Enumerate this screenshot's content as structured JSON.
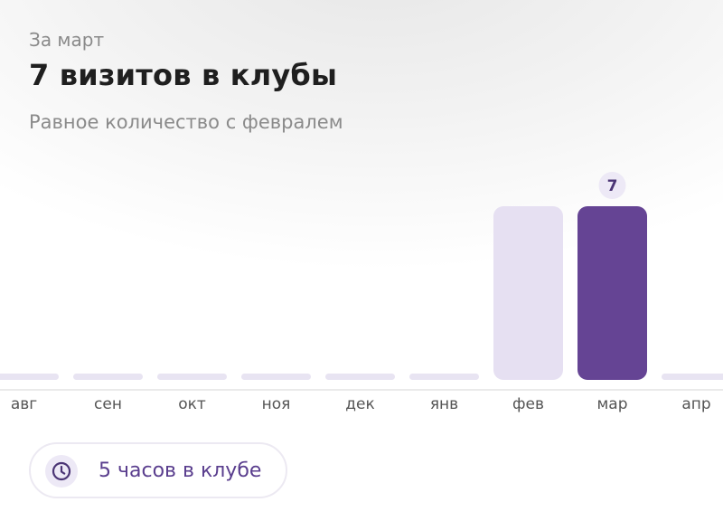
{
  "header": {
    "period_label": "За март",
    "title": "7 визитов в клубы",
    "comparison": "Равное количество с февралем"
  },
  "colors": {
    "highlight_bar": "#654494",
    "previous_bar": "#e6e0f2",
    "empty_bar": "#e8e4f2",
    "value_badge_bg": "#ede9f6",
    "value_badge_text": "#4b3575"
  },
  "chart_data": {
    "type": "bar",
    "categories": [
      "авг",
      "сен",
      "окт",
      "ноя",
      "дек",
      "янв",
      "фев",
      "мар",
      "апр"
    ],
    "values": [
      0,
      0,
      0,
      0,
      0,
      0,
      7,
      7,
      0
    ],
    "highlighted": "мар",
    "data_labels": [
      {
        "category": "мар",
        "value": "7"
      }
    ],
    "title": "",
    "xlabel": "",
    "ylabel": "",
    "ylim": [
      0,
      7
    ],
    "grid": false,
    "legend": "none"
  },
  "time_in_club": {
    "icon": "clock-icon",
    "label": "5 часов в клубе"
  }
}
